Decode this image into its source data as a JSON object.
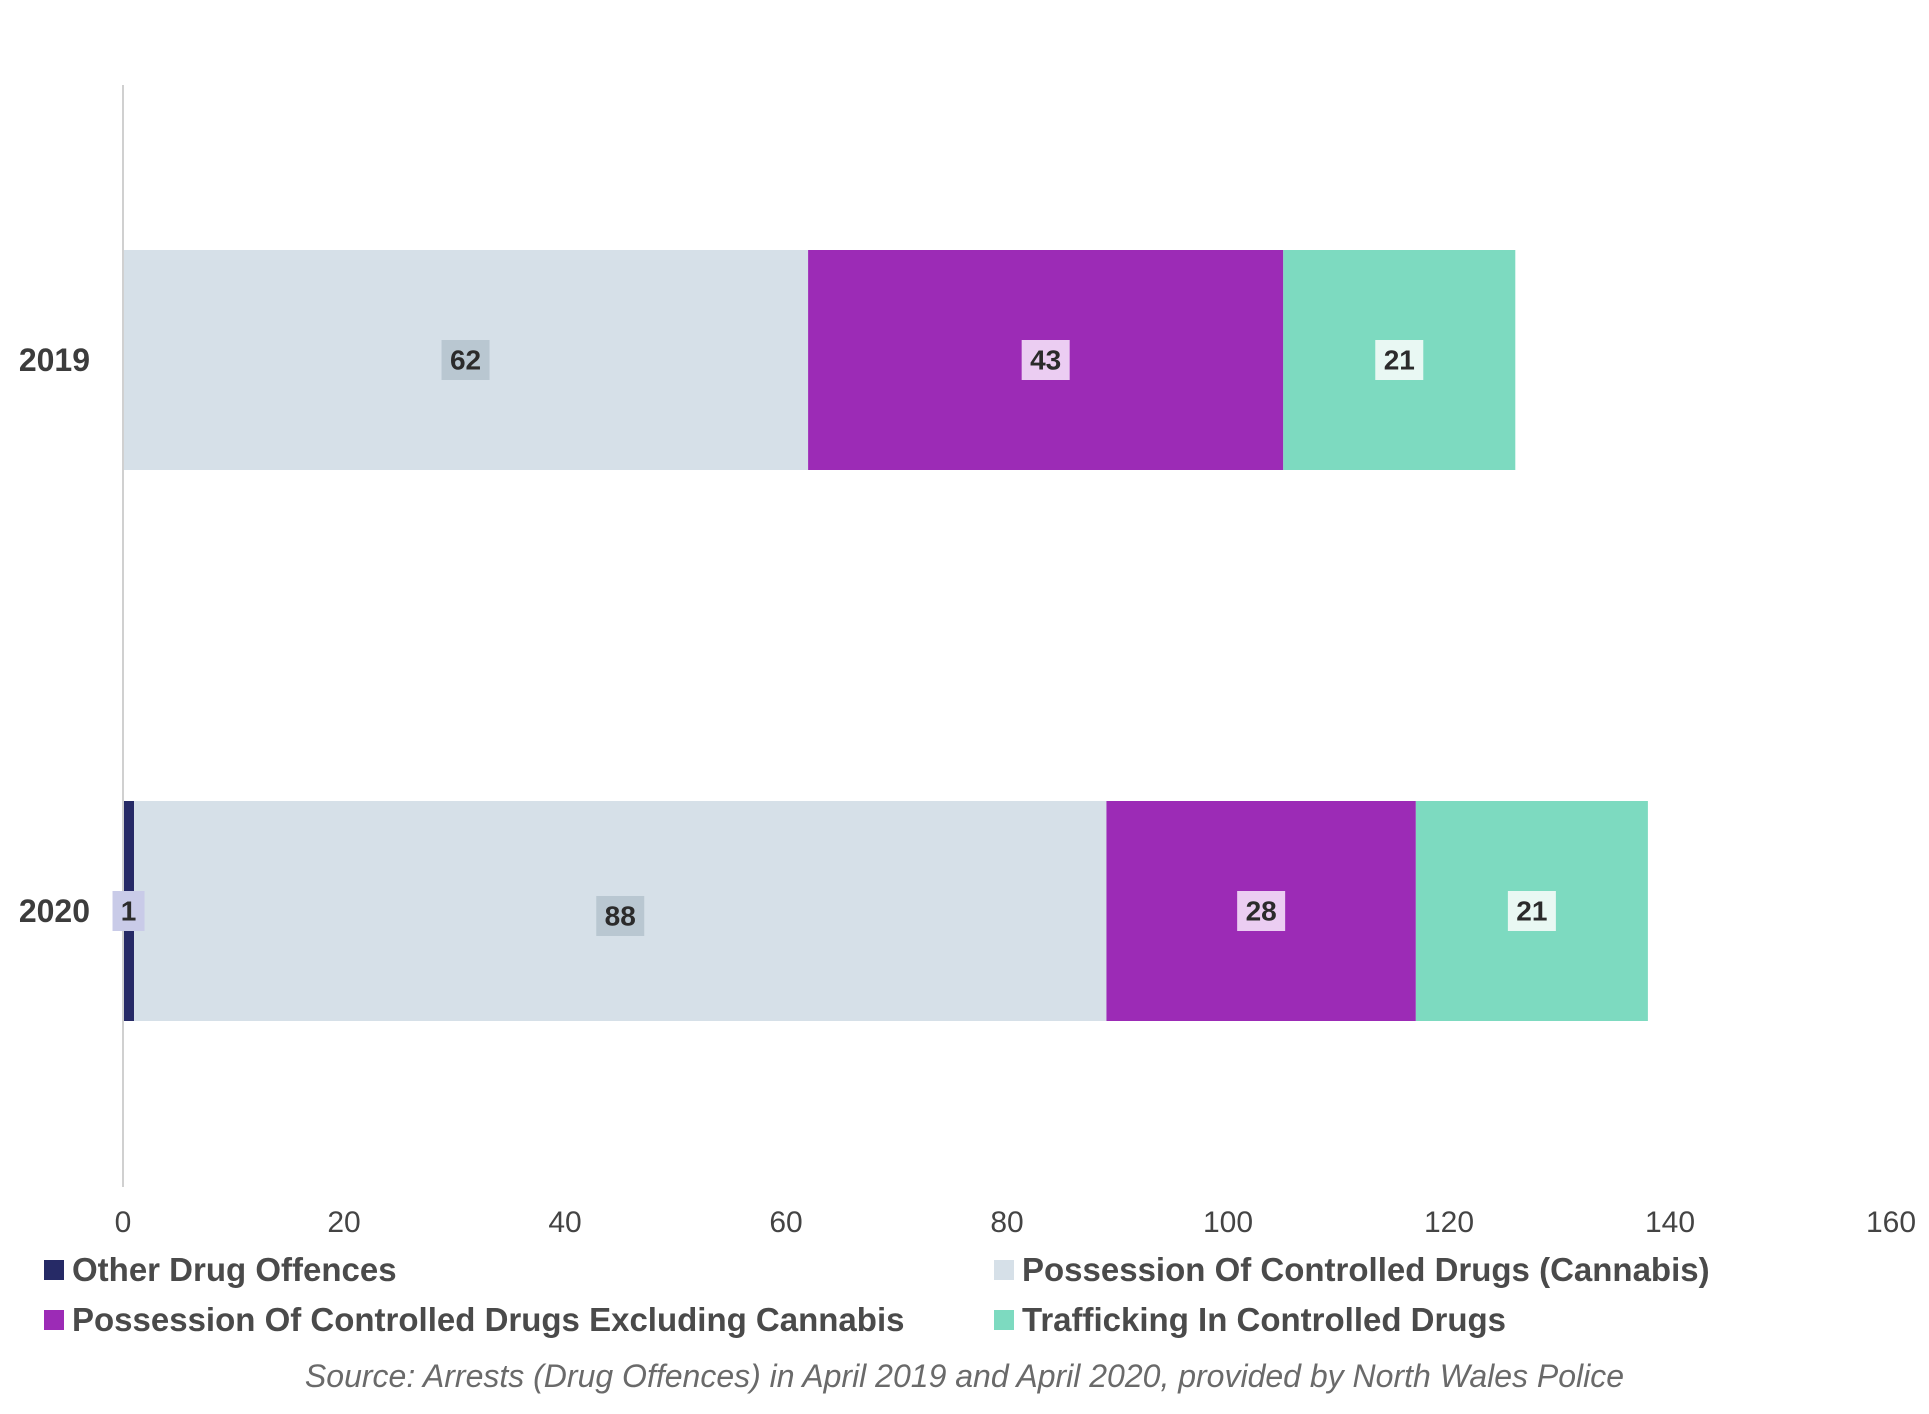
{
  "chart_data": {
    "type": "bar",
    "orientation": "horizontal",
    "stacked": true,
    "categories": [
      "2019",
      "2020"
    ],
    "series": [
      {
        "name": "Other Drug Offences",
        "values": [
          0,
          1
        ],
        "color": "#262a66",
        "label_bg": "#c9cbe8"
      },
      {
        "name": "Possession Of Controlled Drugs (Cannabis)",
        "values": [
          62,
          88
        ],
        "color": "#d6e0e8",
        "label_bg": "#b9c7d1"
      },
      {
        "name": "Possession Of Controlled Drugs Excluding Cannabis",
        "values": [
          43,
          28
        ],
        "color": "#9c2bb6",
        "label_bg": "#ebcdf2"
      },
      {
        "name": "Trafficking In Controlled Drugs",
        "values": [
          21,
          21
        ],
        "color": "#7ddac0",
        "label_bg": "#e9f8f3"
      }
    ],
    "data_labels": [
      {
        "category": "2019",
        "series": "Possession Of Controlled Drugs (Cannabis)",
        "text": "62"
      },
      {
        "category": "2019",
        "series": "Possession Of Controlled Drugs Excluding Cannabis",
        "text": "43"
      },
      {
        "category": "2019",
        "series": "Trafficking In Controlled Drugs",
        "text": "21"
      },
      {
        "category": "2020",
        "series": "Other Drug Offences",
        "text": "1"
      },
      {
        "category": "2020",
        "series": "Possession Of Controlled Drugs (Cannabis)",
        "text": "88"
      },
      {
        "category": "2020",
        "series": "Possession Of Controlled Drugs Excluding Cannabis",
        "text": "28"
      },
      {
        "category": "2020",
        "series": "Trafficking In Controlled Drugs",
        "text": "21"
      }
    ],
    "xlim": [
      0,
      160
    ],
    "x_ticks": [
      0,
      20,
      40,
      60,
      80,
      100,
      120,
      140,
      160
    ],
    "title": "",
    "xlabel": "",
    "ylabel": "",
    "grid": false,
    "legend_position": "bottom",
    "source": "Source: Arrests (Drug Offences) in April 2019 and April 2020, provided by North Wales Police"
  }
}
